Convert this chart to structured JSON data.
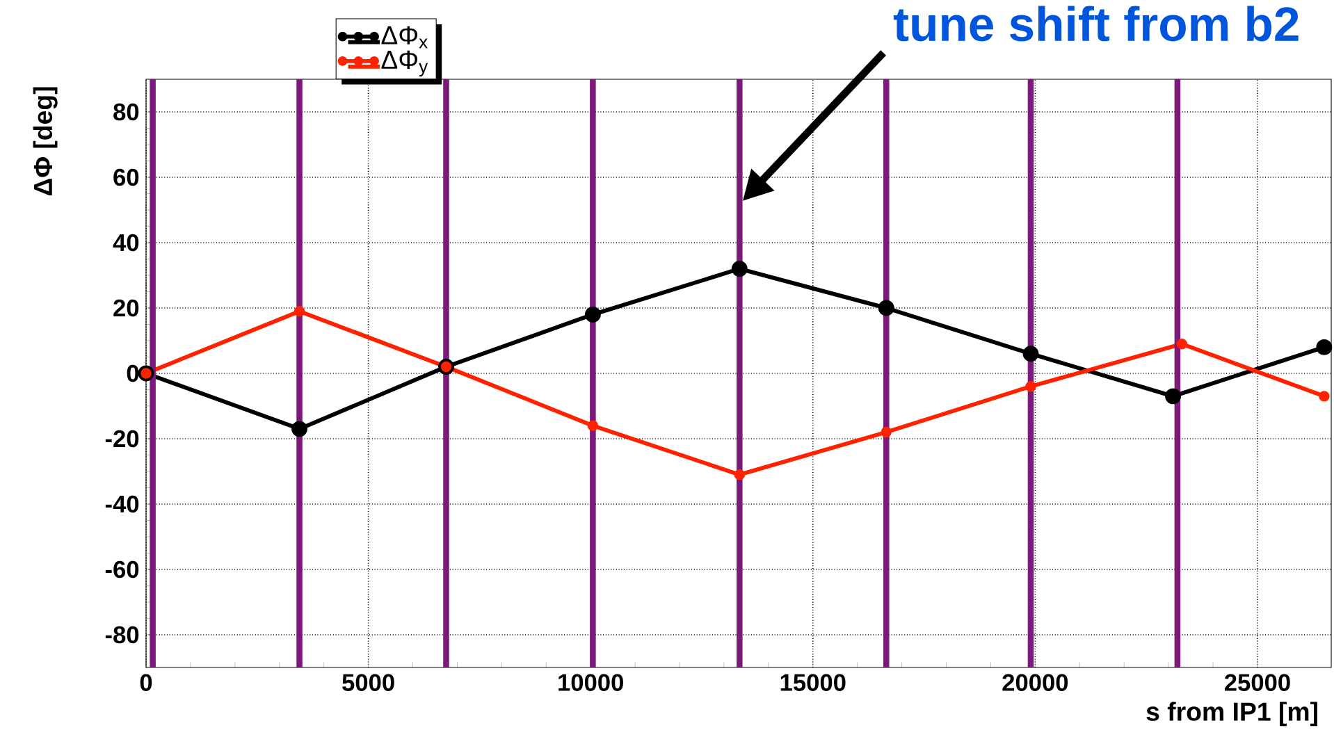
{
  "chart_data": {
    "type": "line",
    "xlabel": "s from IP1 [m]",
    "ylabel": "ΔΦ [deg]",
    "xlim": [
      0,
      26659
    ],
    "ylim": [
      -90,
      90
    ],
    "xticks": [
      0,
      5000,
      10000,
      15000,
      20000,
      25000
    ],
    "yticks": [
      -80,
      -60,
      -40,
      -20,
      0,
      20,
      40,
      60,
      80
    ],
    "grid": true,
    "legend": "top left",
    "marker": "circle",
    "line_style": "solid",
    "series": [
      {
        "name": "ΔΦ$_{x}$",
        "color": "#000000",
        "x": [
          0,
          3450,
          6750,
          10050,
          13350,
          16650,
          19900,
          23100,
          26500
        ],
        "values": [
          0,
          -17,
          2,
          18,
          32,
          20,
          6,
          -7,
          8
        ]
      },
      {
        "name": "ΔΦ$_{y}$",
        "color": "#ff2200",
        "x": [
          0,
          3450,
          6750,
          10050,
          13350,
          16650,
          19900,
          23300,
          26500
        ],
        "values": [
          0,
          19,
          2,
          -16,
          -31,
          -18,
          -4,
          9,
          -7
        ]
      }
    ],
    "ref_lines": [
      {
        "axis": "x",
        "value": 150,
        "color": "#7b1a7b"
      },
      {
        "axis": "x",
        "value": 3450,
        "color": "#7b1a7b"
      },
      {
        "axis": "x",
        "value": 6750,
        "color": "#7b1a7b"
      },
      {
        "axis": "x",
        "value": 10050,
        "color": "#7b1a7b"
      },
      {
        "axis": "x",
        "value": 13350,
        "color": "#7b1a7b"
      },
      {
        "axis": "x",
        "value": 16650,
        "color": "#7b1a7b"
      },
      {
        "axis": "x",
        "value": 19900,
        "color": "#7b1a7b"
      },
      {
        "axis": "x",
        "value": 23200,
        "color": "#7b1a7b"
      }
    ],
    "annotations": [
      "tune shift from b2"
    ]
  }
}
